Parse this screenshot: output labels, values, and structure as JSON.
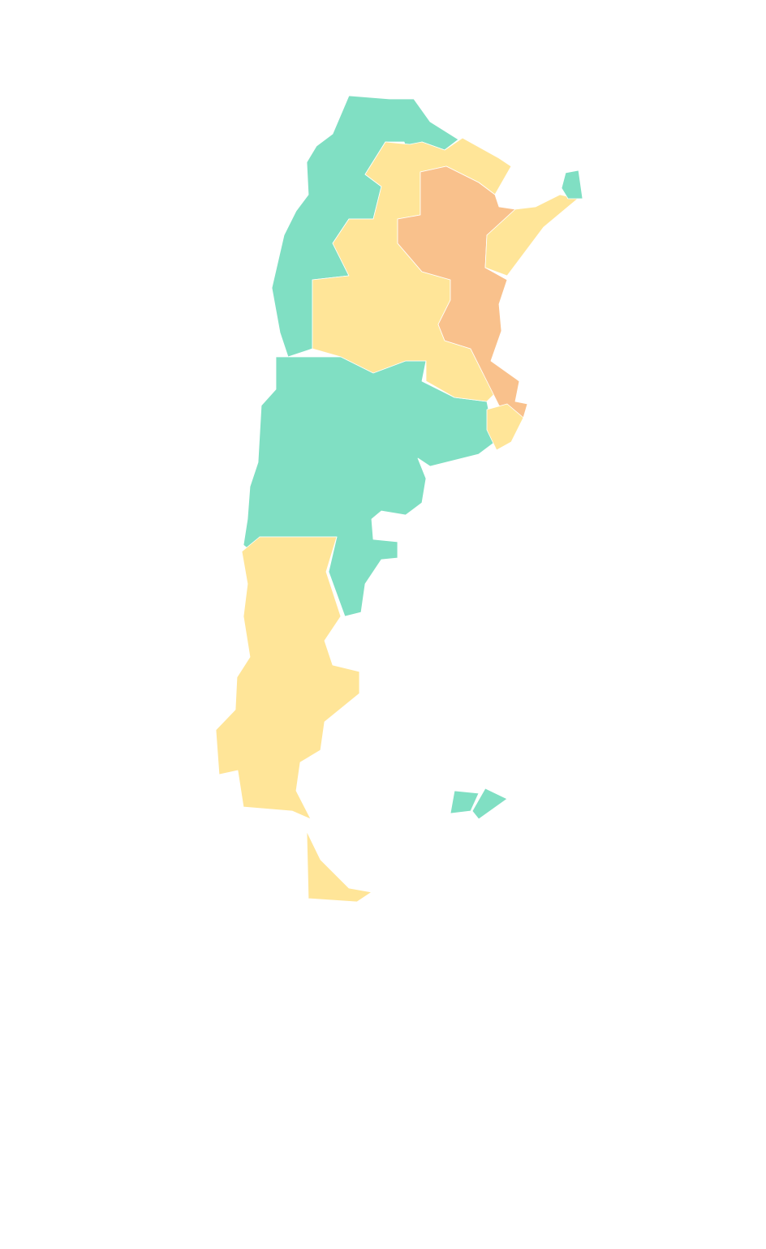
{
  "map": {
    "colors": {
      "category_a": "#80dfc3",
      "category_b": "#ffe598",
      "category_c": "#f9c18c",
      "background": "#ffffff"
    }
  }
}
